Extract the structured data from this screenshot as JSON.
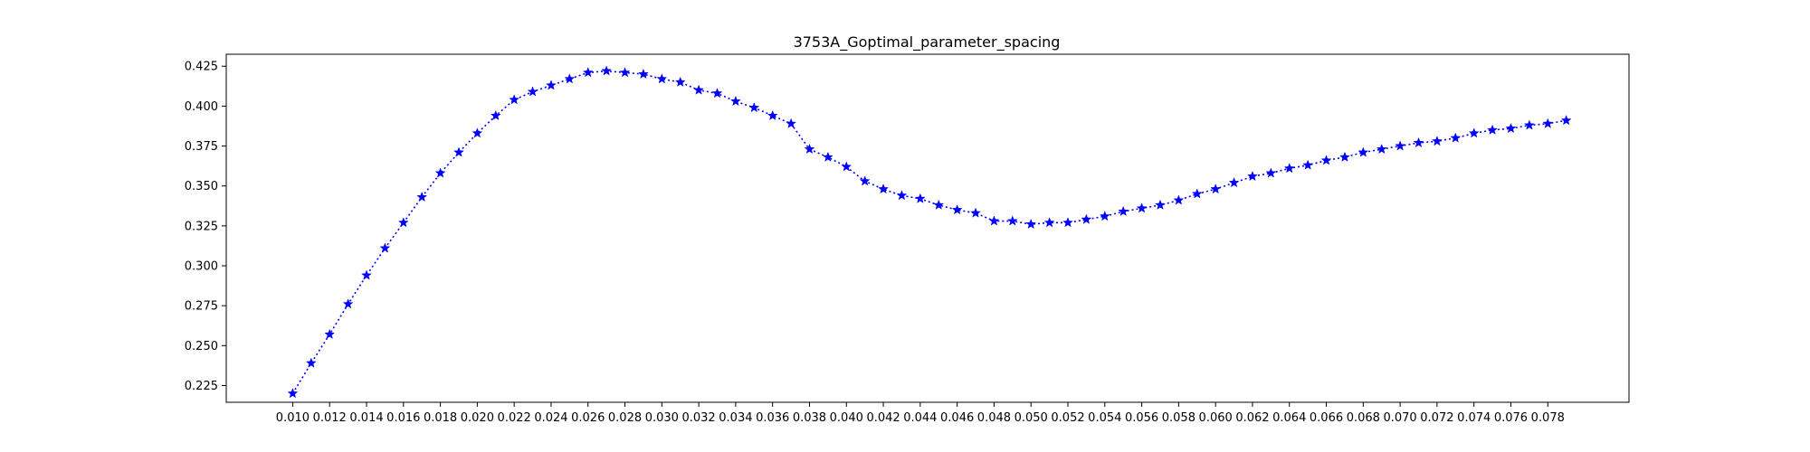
{
  "chart_data": {
    "type": "line",
    "title": "3753A_Goptimal_parameter_spacing",
    "xlabel": "",
    "ylabel": "",
    "xlim": [
      0.0064,
      0.0824
    ],
    "ylim": [
      0.2145,
      0.4325
    ],
    "grid": false,
    "legend": "none",
    "x_ticks": [
      "0.010",
      "0.012",
      "0.014",
      "0.016",
      "0.018",
      "0.020",
      "0.022",
      "0.024",
      "0.026",
      "0.028",
      "0.030",
      "0.032",
      "0.034",
      "0.036",
      "0.038",
      "0.040",
      "0.042",
      "0.044",
      "0.046",
      "0.048",
      "0.050",
      "0.052",
      "0.054",
      "0.056",
      "0.058",
      "0.060",
      "0.062",
      "0.064",
      "0.066",
      "0.068",
      "0.070",
      "0.072",
      "0.074",
      "0.076",
      "0.078"
    ],
    "y_ticks": [
      "0.225",
      "0.250",
      "0.275",
      "0.300",
      "0.325",
      "0.350",
      "0.375",
      "0.400",
      "0.425"
    ],
    "series": [
      {
        "color": "#0000ff",
        "line_style": "dotted",
        "marker": "star",
        "x": [
          0.01,
          0.011,
          0.012,
          0.013,
          0.014,
          0.015,
          0.016,
          0.017,
          0.018,
          0.019,
          0.02,
          0.021,
          0.022,
          0.023,
          0.024,
          0.025,
          0.026,
          0.027,
          0.028,
          0.029,
          0.03,
          0.031,
          0.032,
          0.033,
          0.034,
          0.035,
          0.036,
          0.037,
          0.038,
          0.039,
          0.04,
          0.041,
          0.042,
          0.043,
          0.044,
          0.045,
          0.046,
          0.047,
          0.048,
          0.049,
          0.05,
          0.051,
          0.052,
          0.053,
          0.054,
          0.055,
          0.056,
          0.057,
          0.058,
          0.059,
          0.06,
          0.061,
          0.062,
          0.063,
          0.064,
          0.065,
          0.066,
          0.067,
          0.068,
          0.069,
          0.07,
          0.071,
          0.072,
          0.073,
          0.074,
          0.075,
          0.076,
          0.077,
          0.078,
          0.079
        ],
        "y": [
          0.22,
          0.239,
          0.257,
          0.276,
          0.294,
          0.311,
          0.327,
          0.343,
          0.358,
          0.371,
          0.383,
          0.394,
          0.404,
          0.409,
          0.413,
          0.417,
          0.421,
          0.422,
          0.421,
          0.42,
          0.417,
          0.415,
          0.41,
          0.408,
          0.403,
          0.399,
          0.394,
          0.389,
          0.373,
          0.368,
          0.362,
          0.353,
          0.348,
          0.344,
          0.342,
          0.338,
          0.335,
          0.333,
          0.328,
          0.328,
          0.326,
          0.327,
          0.327,
          0.329,
          0.331,
          0.334,
          0.336,
          0.338,
          0.341,
          0.345,
          0.348,
          0.352,
          0.356,
          0.358,
          0.361,
          0.363,
          0.366,
          0.368,
          0.371,
          0.373,
          0.375,
          0.377,
          0.378,
          0.38,
          0.383,
          0.385,
          0.386,
          0.388,
          0.389,
          0.391
        ]
      }
    ]
  }
}
